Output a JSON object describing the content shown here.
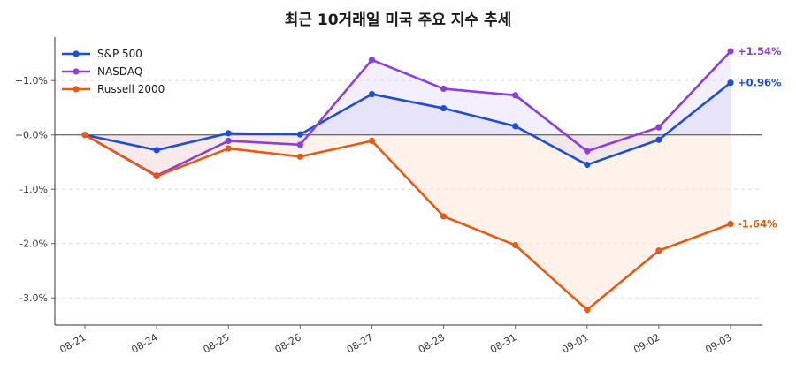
{
  "chart_data": {
    "type": "line",
    "title": "최근 10거래일 미국 주요 지수 추세",
    "xlabel": "",
    "ylabel": "",
    "categories": [
      "08-21",
      "08-24",
      "08-25",
      "08-26",
      "08-27",
      "08-28",
      "08-31",
      "09-01",
      "09-02",
      "09-03"
    ],
    "yticks": [
      1,
      0,
      -1,
      -2,
      -3
    ],
    "ytick_labels": [
      "+1.0%",
      "+0.0%",
      "-1.0%",
      "-2.0%",
      "-3.0%"
    ],
    "ylim": [
      -3.5,
      1.8
    ],
    "grid": "horizontal dashed",
    "legend_position": "top-left",
    "zero_line": true,
    "series": [
      {
        "name": "S&P 500",
        "color": "#1f4fd1",
        "fill": "#c9d2f2",
        "values": [
          0.0,
          -0.28,
          0.03,
          0.01,
          0.75,
          0.49,
          0.16,
          -0.55,
          -0.09,
          0.96
        ],
        "end_label": "+0.96%"
      },
      {
        "name": "NASDAQ",
        "color": "#8a3fe0",
        "fill": "#e6dcfa",
        "values": [
          0.0,
          -0.75,
          -0.11,
          -0.18,
          1.38,
          0.85,
          0.73,
          -0.3,
          0.14,
          1.54
        ],
        "end_label": "+1.54%"
      },
      {
        "name": "Russell 2000",
        "color": "#e85a12",
        "fill": "#fde3d3",
        "values": [
          0.0,
          -0.76,
          -0.25,
          -0.4,
          -0.11,
          -1.5,
          -2.03,
          -3.22,
          -2.13,
          -1.64
        ],
        "end_label": "-1.64%"
      }
    ]
  }
}
